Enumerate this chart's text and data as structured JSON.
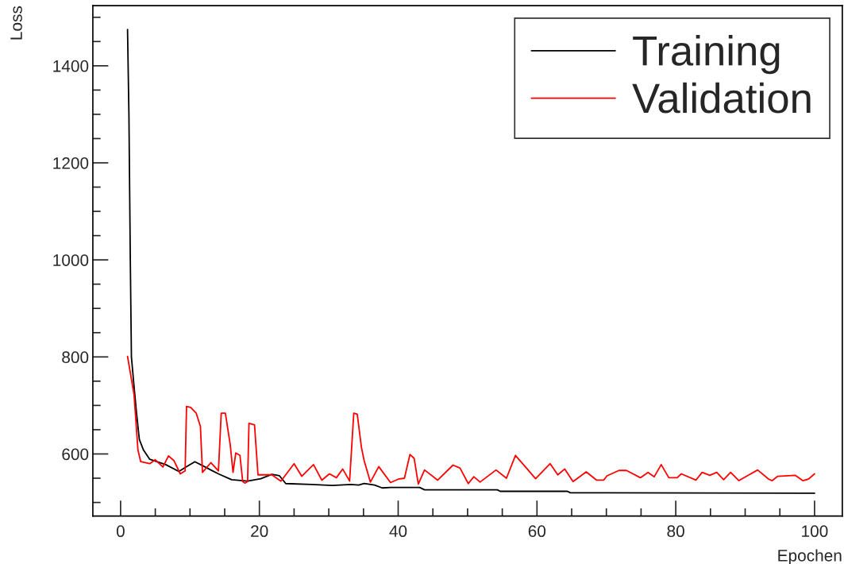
{
  "chart_data": {
    "type": "line",
    "xlabel": "Epochen",
    "ylabel": "Loss",
    "xlim": [
      -4,
      104
    ],
    "ylim": [
      472,
      1524
    ],
    "xticks": [
      0,
      20,
      40,
      60,
      80,
      100
    ],
    "yticks": [
      600,
      800,
      1000,
      1200,
      1400
    ],
    "grid": false,
    "legend": "top right",
    "marker": "none",
    "line_style": "solid",
    "series": [
      {
        "name": "Training",
        "color": "#000000",
        "x": [
          1,
          1.2,
          1.4,
          1.56,
          1.94,
          2.3,
          2.7,
          3.3,
          4.2,
          6.5,
          8.4,
          9.4,
          10.7,
          11.8,
          13,
          14.1,
          16,
          18.3,
          20.2,
          21.8,
          22.9,
          23.8,
          27.5,
          30.5,
          33.2,
          34.3,
          35.1,
          36.6,
          37.7,
          38.9,
          43.1,
          43.8,
          54.3,
          54.7,
          64.4,
          64.8,
          100
        ],
        "values": [
          1475,
          1300,
          1000,
          800,
          739,
          684,
          630,
          608,
          589,
          578,
          564,
          573,
          584,
          576,
          567,
          559,
          547,
          544,
          549,
          558,
          555,
          539,
          537,
          535,
          537,
          536,
          539,
          536,
          530,
          531,
          531,
          526,
          526,
          523,
          523,
          520,
          519
        ]
      },
      {
        "name": "Validation",
        "color": "#ff0000",
        "x": [
          1,
          1.94,
          2.5,
          2.9,
          4.2,
          5,
          6.1,
          6.9,
          7.7,
          8.6,
          9.3,
          9.5,
          10.1,
          10.9,
          11.5,
          11.8,
          13,
          14.1,
          14.5,
          15.1,
          15.8,
          16.2,
          16.6,
          17.2,
          17.6,
          17.9,
          18.3,
          18.5,
          19.3,
          19.8,
          21.8,
          23.1,
          25,
          26.1,
          27.8,
          29,
          30.1,
          31.1,
          32,
          33,
          33.6,
          34.1,
          34.7,
          35.1,
          36,
          37.2,
          38.9,
          40,
          40.9,
          41.7,
          42.3,
          42.9,
          43.8,
          45.7,
          47.9,
          48.9,
          50.1,
          50.9,
          51.8,
          54.1,
          55.6,
          56.9,
          58.3,
          59.8,
          61.9,
          63,
          64,
          65.2,
          67.1,
          68.6,
          69.6,
          70.1,
          71.8,
          72.9,
          74.9,
          76,
          76.9,
          77.9,
          79,
          80.2,
          80.8,
          82.9,
          83.8,
          84.9,
          85.9,
          86.9,
          87.9,
          89.1,
          90.3,
          91.8,
          93.4,
          93.9,
          94.7,
          97.2,
          98.3,
          99.1,
          100
        ],
        "values": [
          801,
          722,
          608,
          584,
          580,
          588,
          573,
          596,
          586,
          559,
          565,
          698,
          696,
          684,
          657,
          562,
          582,
          565,
          684,
          684,
          619,
          562,
          602,
          597,
          543,
          540,
          543,
          663,
          660,
          557,
          557,
          544,
          580,
          554,
          578,
          546,
          559,
          551,
          569,
          544,
          684,
          682,
          614,
          586,
          542,
          574,
          541,
          548,
          550,
          599,
          591,
          538,
          567,
          546,
          577,
          571,
          539,
          553,
          542,
          567,
          550,
          597,
          574,
          549,
          580,
          557,
          569,
          543,
          563,
          546,
          546,
          555,
          566,
          566,
          551,
          562,
          553,
          578,
          551,
          551,
          559,
          546,
          562,
          556,
          562,
          547,
          562,
          545,
          555,
          567,
          548,
          545,
          554,
          556,
          545,
          548,
          559
        ]
      }
    ]
  }
}
